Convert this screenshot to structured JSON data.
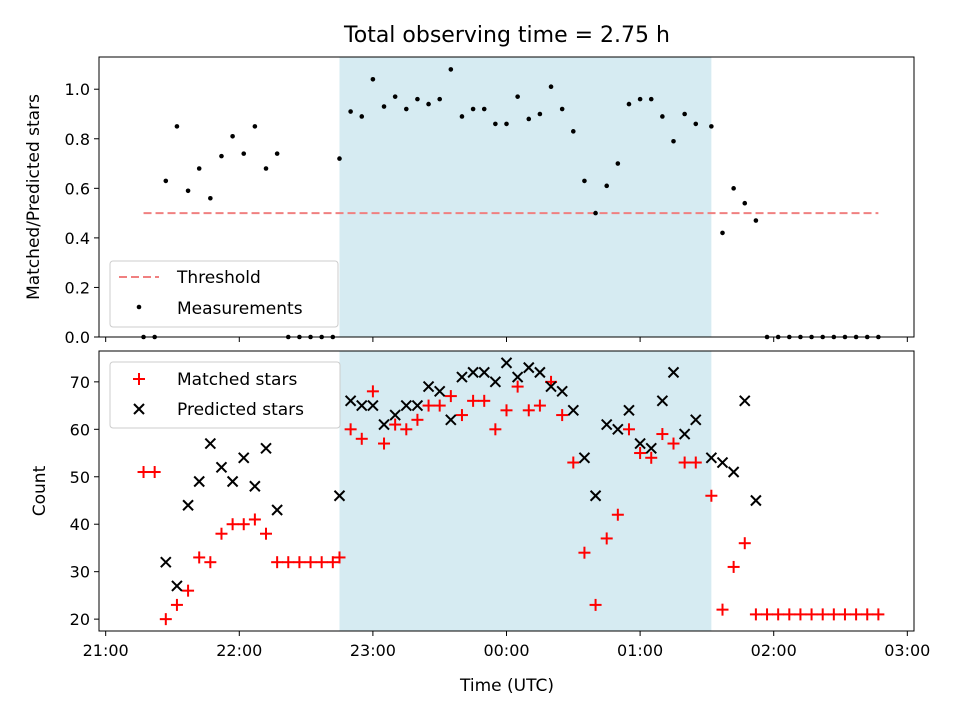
{
  "figure": {
    "title": "Total observing time = 2.75 h",
    "highlight_color": "#add8e6",
    "highlight_span": [
      "22:45",
      "01:32"
    ]
  },
  "chart_data": [
    {
      "type": "scatter",
      "panel": "top",
      "ylabel": "Matched/Predicted stars",
      "xlim": [
        "20:57",
        "03:03"
      ],
      "ylim": [
        0,
        1.13
      ],
      "yticks": [
        "0.0",
        "0.2",
        "0.4",
        "0.6",
        "0.8",
        "1.0"
      ],
      "grid": false,
      "legend_position": "lower-left",
      "threshold": {
        "name": "Threshold",
        "value": 0.5,
        "x": [
          "21:17",
          "02:47"
        ],
        "color": "#f08080"
      },
      "series": [
        {
          "name": "Measurements",
          "color": "#000000",
          "points": [
            [
              "21:17",
              0.0
            ],
            [
              "21:22",
              0.0
            ],
            [
              "21:27",
              0.63
            ],
            [
              "21:32",
              0.85
            ],
            [
              "21:37",
              0.59
            ],
            [
              "21:42",
              0.68
            ],
            [
              "21:47",
              0.56
            ],
            [
              "21:52",
              0.73
            ],
            [
              "21:57",
              0.81
            ],
            [
              "22:02",
              0.74
            ],
            [
              "22:07",
              0.85
            ],
            [
              "22:12",
              0.68
            ],
            [
              "22:17",
              0.74
            ],
            [
              "22:22",
              0.0
            ],
            [
              "22:27",
              0.0
            ],
            [
              "22:32",
              0.0
            ],
            [
              "22:37",
              0.0
            ],
            [
              "22:42",
              0.0
            ],
            [
              "22:45",
              0.72
            ],
            [
              "22:50",
              0.91
            ],
            [
              "22:55",
              0.89
            ],
            [
              "23:00",
              1.04
            ],
            [
              "23:05",
              0.93
            ],
            [
              "23:10",
              0.97
            ],
            [
              "23:15",
              0.92
            ],
            [
              "23:20",
              0.96
            ],
            [
              "23:25",
              0.94
            ],
            [
              "23:30",
              0.96
            ],
            [
              "23:35",
              1.08
            ],
            [
              "23:40",
              0.89
            ],
            [
              "23:45",
              0.92
            ],
            [
              "23:50",
              0.92
            ],
            [
              "23:55",
              0.86
            ],
            [
              "00:00",
              0.86
            ],
            [
              "00:05",
              0.97
            ],
            [
              "00:10",
              0.88
            ],
            [
              "00:15",
              0.9
            ],
            [
              "00:20",
              1.01
            ],
            [
              "00:25",
              0.92
            ],
            [
              "00:30",
              0.83
            ],
            [
              "00:35",
              0.63
            ],
            [
              "00:40",
              0.5
            ],
            [
              "00:45",
              0.61
            ],
            [
              "00:50",
              0.7
            ],
            [
              "00:55",
              0.94
            ],
            [
              "01:00",
              0.96
            ],
            [
              "01:05",
              0.96
            ],
            [
              "01:10",
              0.89
            ],
            [
              "01:15",
              0.79
            ],
            [
              "01:20",
              0.9
            ],
            [
              "01:25",
              0.86
            ],
            [
              "01:32",
              0.85
            ],
            [
              "01:37",
              0.42
            ],
            [
              "01:42",
              0.6
            ],
            [
              "01:47",
              0.54
            ],
            [
              "01:52",
              0.47
            ],
            [
              "01:57",
              0.0
            ],
            [
              "02:02",
              0.0
            ],
            [
              "02:07",
              0.0
            ],
            [
              "02:12",
              0.0
            ],
            [
              "02:17",
              0.0
            ],
            [
              "02:22",
              0.0
            ],
            [
              "02:27",
              0.0
            ],
            [
              "02:32",
              0.0
            ],
            [
              "02:37",
              0.0
            ],
            [
              "02:42",
              0.0
            ],
            [
              "02:47",
              0.0
            ]
          ]
        }
      ]
    },
    {
      "type": "scatter",
      "panel": "bottom",
      "xlabel": "Time (UTC)",
      "ylabel": "Count",
      "xlim": [
        "20:57",
        "03:03"
      ],
      "ylim": [
        17.5,
        76.5
      ],
      "xticks": [
        "21:00",
        "22:00",
        "23:00",
        "00:00",
        "01:00",
        "02:00",
        "03:00"
      ],
      "yticks": [
        "20",
        "30",
        "40",
        "50",
        "60",
        "70"
      ],
      "grid": false,
      "legend_position": "upper-left",
      "series": [
        {
          "name": "Matched stars",
          "marker": "+",
          "color": "#ff0000",
          "points": [
            [
              "21:17",
              51
            ],
            [
              "21:22",
              51
            ],
            [
              "21:27",
              20
            ],
            [
              "21:32",
              23
            ],
            [
              "21:37",
              26
            ],
            [
              "21:42",
              33
            ],
            [
              "21:47",
              32
            ],
            [
              "21:52",
              38
            ],
            [
              "21:57",
              40
            ],
            [
              "22:02",
              40
            ],
            [
              "22:07",
              41
            ],
            [
              "22:12",
              38
            ],
            [
              "22:17",
              32
            ],
            [
              "22:22",
              32
            ],
            [
              "22:27",
              32
            ],
            [
              "22:32",
              32
            ],
            [
              "22:37",
              32
            ],
            [
              "22:42",
              32
            ],
            [
              "22:45",
              33
            ],
            [
              "22:50",
              60
            ],
            [
              "22:55",
              58
            ],
            [
              "23:00",
              68
            ],
            [
              "23:05",
              57
            ],
            [
              "23:10",
              61
            ],
            [
              "23:15",
              60
            ],
            [
              "23:20",
              62
            ],
            [
              "23:25",
              65
            ],
            [
              "23:30",
              65
            ],
            [
              "23:35",
              67
            ],
            [
              "23:40",
              63
            ],
            [
              "23:45",
              66
            ],
            [
              "23:50",
              66
            ],
            [
              "23:55",
              60
            ],
            [
              "00:00",
              64
            ],
            [
              "00:05",
              69
            ],
            [
              "00:10",
              64
            ],
            [
              "00:15",
              65
            ],
            [
              "00:20",
              70
            ],
            [
              "00:25",
              63
            ],
            [
              "00:30",
              53
            ],
            [
              "00:35",
              34
            ],
            [
              "00:40",
              23
            ],
            [
              "00:45",
              37
            ],
            [
              "00:50",
              42
            ],
            [
              "00:55",
              60
            ],
            [
              "01:00",
              55
            ],
            [
              "01:05",
              54
            ],
            [
              "01:10",
              59
            ],
            [
              "01:15",
              57
            ],
            [
              "01:20",
              53
            ],
            [
              "01:25",
              53
            ],
            [
              "01:32",
              46
            ],
            [
              "01:37",
              22
            ],
            [
              "01:42",
              31
            ],
            [
              "01:47",
              36
            ],
            [
              "01:52",
              21
            ],
            [
              "01:57",
              21
            ],
            [
              "02:02",
              21
            ],
            [
              "02:07",
              21
            ],
            [
              "02:12",
              21
            ],
            [
              "02:17",
              21
            ],
            [
              "02:22",
              21
            ],
            [
              "02:27",
              21
            ],
            [
              "02:32",
              21
            ],
            [
              "02:37",
              21
            ],
            [
              "02:42",
              21
            ],
            [
              "02:47",
              21
            ]
          ]
        },
        {
          "name": "Predicted stars",
          "marker": "x",
          "color": "#000000",
          "points": [
            [
              "21:27",
              32
            ],
            [
              "21:32",
              27
            ],
            [
              "21:37",
              44
            ],
            [
              "21:42",
              49
            ],
            [
              "21:47",
              57
            ],
            [
              "21:52",
              52
            ],
            [
              "21:57",
              49
            ],
            [
              "22:02",
              54
            ],
            [
              "22:07",
              48
            ],
            [
              "22:12",
              56
            ],
            [
              "22:17",
              43
            ],
            [
              "22:45",
              46
            ],
            [
              "22:50",
              66
            ],
            [
              "22:55",
              65
            ],
            [
              "23:00",
              65
            ],
            [
              "23:05",
              61
            ],
            [
              "23:10",
              63
            ],
            [
              "23:15",
              65
            ],
            [
              "23:20",
              65
            ],
            [
              "23:25",
              69
            ],
            [
              "23:30",
              68
            ],
            [
              "23:35",
              62
            ],
            [
              "23:40",
              71
            ],
            [
              "23:45",
              72
            ],
            [
              "23:50",
              72
            ],
            [
              "23:55",
              70
            ],
            [
              "00:00",
              74
            ],
            [
              "00:05",
              71
            ],
            [
              "00:10",
              73
            ],
            [
              "00:15",
              72
            ],
            [
              "00:20",
              69
            ],
            [
              "00:25",
              68
            ],
            [
              "00:30",
              64
            ],
            [
              "00:35",
              54
            ],
            [
              "00:40",
              46
            ],
            [
              "00:45",
              61
            ],
            [
              "00:50",
              60
            ],
            [
              "00:55",
              64
            ],
            [
              "01:00",
              57
            ],
            [
              "01:05",
              56
            ],
            [
              "01:10",
              66
            ],
            [
              "01:15",
              72
            ],
            [
              "01:20",
              59
            ],
            [
              "01:25",
              62
            ],
            [
              "01:32",
              54
            ],
            [
              "01:37",
              53
            ],
            [
              "01:42",
              51
            ],
            [
              "01:47",
              66
            ],
            [
              "01:52",
              45
            ]
          ]
        }
      ]
    }
  ]
}
